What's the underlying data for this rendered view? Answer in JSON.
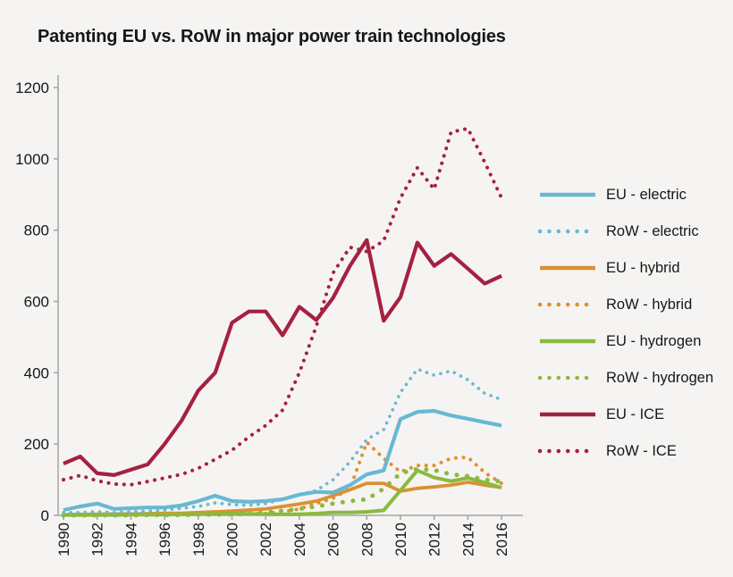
{
  "chart_data": {
    "type": "line",
    "title": "Patenting EU vs. RoW in major power train technologies",
    "xlabel": "",
    "ylabel": "",
    "grid": false,
    "legend_position": "right",
    "xlim": [
      1990,
      2016
    ],
    "ylim": [
      0,
      1200
    ],
    "y_ticks": [
      0,
      200,
      400,
      600,
      800,
      1000,
      1200
    ],
    "x_tick_years": [
      1990,
      1992,
      1994,
      1996,
      1998,
      2000,
      2002,
      2004,
      2006,
      2008,
      2010,
      2012,
      2014,
      2016
    ],
    "years": [
      1990,
      1991,
      1992,
      1993,
      1994,
      1995,
      1996,
      1997,
      1998,
      1999,
      2000,
      2001,
      2002,
      2003,
      2004,
      2005,
      2006,
      2007,
      2008,
      2009,
      2010,
      2011,
      2012,
      2013,
      2014,
      2015,
      2016
    ],
    "series": [
      {
        "name": "EU - electric",
        "color": "#69b8d2",
        "style": "solid",
        "values": [
          15,
          25,
          33,
          18,
          20,
          22,
          22,
          28,
          40,
          55,
          40,
          38,
          40,
          45,
          58,
          66,
          64,
          85,
          115,
          126,
          270,
          290,
          293,
          280,
          271,
          261,
          252
        ]
      },
      {
        "name": "RoW - electric",
        "color": "#69b8d2",
        "style": "dotted",
        "values": [
          8,
          8,
          10,
          8,
          10,
          12,
          15,
          20,
          25,
          35,
          30,
          28,
          33,
          45,
          58,
          70,
          100,
          150,
          213,
          240,
          345,
          410,
          393,
          405,
          380,
          342,
          325
        ]
      },
      {
        "name": "EU - hybrid",
        "color": "#dd9032",
        "style": "solid",
        "values": [
          2,
          3,
          3,
          4,
          4,
          5,
          6,
          6,
          8,
          10,
          12,
          15,
          18,
          25,
          32,
          40,
          55,
          72,
          90,
          90,
          68,
          76,
          80,
          85,
          93,
          85,
          78
        ]
      },
      {
        "name": "RoW - hybrid",
        "color": "#dd9032",
        "style": "dotted",
        "values": [
          1,
          1,
          2,
          2,
          2,
          3,
          3,
          4,
          5,
          6,
          8,
          5,
          5,
          10,
          18,
          33,
          48,
          75,
          205,
          160,
          122,
          140,
          140,
          160,
          163,
          120,
          90
        ]
      },
      {
        "name": "EU - hydrogen",
        "color": "#8aba3e",
        "style": "solid",
        "values": [
          1,
          1,
          1,
          1,
          2,
          2,
          2,
          3,
          3,
          4,
          5,
          4,
          3,
          3,
          3,
          5,
          8,
          8,
          10,
          14,
          70,
          126,
          106,
          96,
          105,
          92,
          78
        ]
      },
      {
        "name": "RoW - hydrogen",
        "color": "#8aba3e",
        "style": "dotted",
        "values": [
          0,
          0,
          0,
          0,
          0,
          1,
          1,
          1,
          2,
          2,
          3,
          4,
          8,
          13,
          18,
          25,
          33,
          40,
          45,
          75,
          118,
          130,
          127,
          115,
          110,
          100,
          95
        ]
      },
      {
        "name": "EU - ICE",
        "color": "#a62040",
        "style": "solid",
        "values": [
          145,
          165,
          118,
          113,
          128,
          143,
          200,
          265,
          350,
          400,
          540,
          572,
          572,
          505,
          585,
          548,
          610,
          700,
          772,
          546,
          612,
          765,
          700,
          733,
          692,
          650,
          672
        ]
      },
      {
        "name": "RoW - ICE",
        "color": "#a62040",
        "style": "dotted",
        "values": [
          100,
          112,
          97,
          88,
          86,
          95,
          105,
          115,
          132,
          157,
          183,
          220,
          252,
          295,
          400,
          530,
          680,
          752,
          740,
          770,
          890,
          975,
          915,
          1075,
          1085,
          990,
          890
        ]
      }
    ],
    "colors": {
      "background": "#f5f4f2",
      "axis": "#a3a3a3",
      "text": "#161616",
      "electric": "#69b8d2",
      "hybrid": "#dd9032",
      "hydrogen": "#8aba3e",
      "ice": "#a62040"
    }
  }
}
